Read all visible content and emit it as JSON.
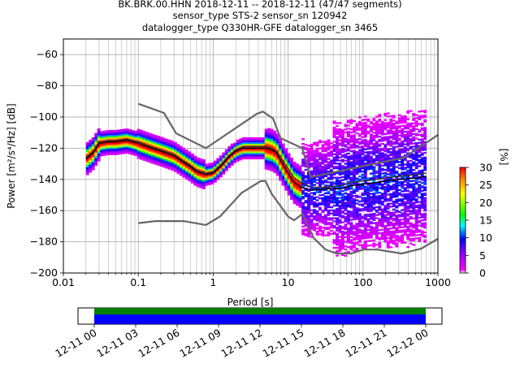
{
  "title_lines": [
    "BK.BRK.00.HHN   2018-12-11 -- 2018-12-11  (47/47 segments)",
    "sensor_type STS-2 sensor_sn 120942",
    "datalogger_type Q330HR-GFE datalogger_sn 3465"
  ],
  "chart_data": {
    "type": "heatmap",
    "xlabel": "Period [s]",
    "ylabel": "Power [m²/s⁴/Hz] [dB]",
    "xscale": "log",
    "xlim": [
      0.01,
      1000
    ],
    "ylim": [
      -200,
      -50
    ],
    "x_ticks": [
      0.01,
      0.1,
      1,
      10,
      100,
      1000
    ],
    "x_tick_labels": [
      "0.01",
      "0.1",
      "1",
      "10",
      "100",
      "1000"
    ],
    "y_ticks": [
      -200,
      -180,
      -160,
      -140,
      -120,
      -100,
      -80,
      -60
    ],
    "y_tick_labels": [
      "−200",
      "−180",
      "−160",
      "−140",
      "−120",
      "−100",
      "−80",
      "−60"
    ],
    "grid": true,
    "colorbar": {
      "label": "[%]",
      "range": [
        0,
        30
      ],
      "ticks": [
        0,
        5,
        10,
        15,
        20,
        25,
        30
      ],
      "tick_labels": [
        "0",
        "5",
        "10",
        "15",
        "20",
        "25",
        "30"
      ],
      "colors": [
        "#ffffff",
        "#ff00ff",
        "#0000ff",
        "#00ffff",
        "#00ff00",
        "#ffff00",
        "#ff8800",
        "#ff0000"
      ]
    },
    "nhnm": {
      "x": [
        0.1,
        0.22,
        0.32,
        0.8,
        3.8,
        4.6,
        6.3,
        7.9,
        15.4,
        20,
        354.8,
        1000
      ],
      "y": [
        -91.5,
        -97.4,
        -110.5,
        -120,
        -98,
        -96.5,
        -101,
        -113.5,
        -120,
        -138.5,
        -126,
        -111.5
      ]
    },
    "nlnm": {
      "x": [
        0.1,
        0.17,
        0.4,
        0.8,
        1.24,
        2.4,
        4.3,
        5,
        6,
        10,
        12,
        15.6,
        21.9,
        31.6,
        45,
        70,
        101,
        154,
        328,
        600,
        1000
      ],
      "y": [
        -168,
        -166.7,
        -166.7,
        -169.2,
        -163.7,
        -148.6,
        -141.1,
        -141.1,
        -149,
        -163.8,
        -166.2,
        -162.1,
        -177.5,
        -185,
        -187.5,
        -187.5,
        -185,
        -185,
        -187.5,
        -184.4,
        -178
      ]
    },
    "mean_psd": {
      "x": [
        0.02,
        0.025,
        0.03,
        0.04,
        0.05,
        0.07,
        0.1,
        0.15,
        0.2,
        0.3,
        0.4,
        0.5,
        0.6,
        0.8,
        1,
        1.3,
        1.6,
        2,
        2.5,
        3,
        4,
        5,
        6,
        7,
        8,
        10,
        12,
        15,
        20,
        30,
        50,
        70,
        100,
        150,
        200,
        300,
        500,
        700
      ],
      "y": [
        -126,
        -122,
        -116,
        -115,
        -115,
        -114,
        -116,
        -119,
        -121,
        -124,
        -128,
        -131,
        -134,
        -136,
        -135,
        -130,
        -125,
        -121,
        -119,
        -119,
        -119,
        -119,
        -120,
        -122,
        -126,
        -133,
        -139,
        -142,
        -145,
        -145,
        -144,
        -142,
        -141,
        -140,
        -139,
        -138,
        -137,
        -136
      ]
    },
    "mode_psd": {
      "x": [
        0.02,
        0.025,
        0.03,
        0.04,
        0.05,
        0.07,
        0.1,
        0.15,
        0.2,
        0.3,
        0.4,
        0.5,
        0.6,
        0.8,
        1,
        1.3,
        1.6,
        2,
        2.5,
        3,
        4,
        5,
        6,
        7,
        8,
        10,
        12,
        15,
        20,
        30,
        50,
        70,
        100,
        150,
        200,
        300,
        500,
        700
      ],
      "y": [
        -127,
        -123,
        -117,
        -116,
        -116,
        -115,
        -117,
        -120,
        -122,
        -125,
        -129,
        -132,
        -135,
        -137,
        -136,
        -131,
        -126,
        -122,
        -120,
        -120,
        -120,
        -120,
        -121,
        -123,
        -128,
        -136,
        -142,
        -145,
        -147,
        -146,
        -146,
        -144,
        -143,
        -142,
        -141,
        -140,
        -139,
        -138
      ]
    }
  },
  "coverage": {
    "tick_labels": [
      "12-11 00",
      "12-11 03",
      "12-11 06",
      "12-11 09",
      "12-11 12",
      "12-11 15",
      "12-11 18",
      "12-11 21",
      "12-12 00"
    ],
    "segments": 47
  }
}
